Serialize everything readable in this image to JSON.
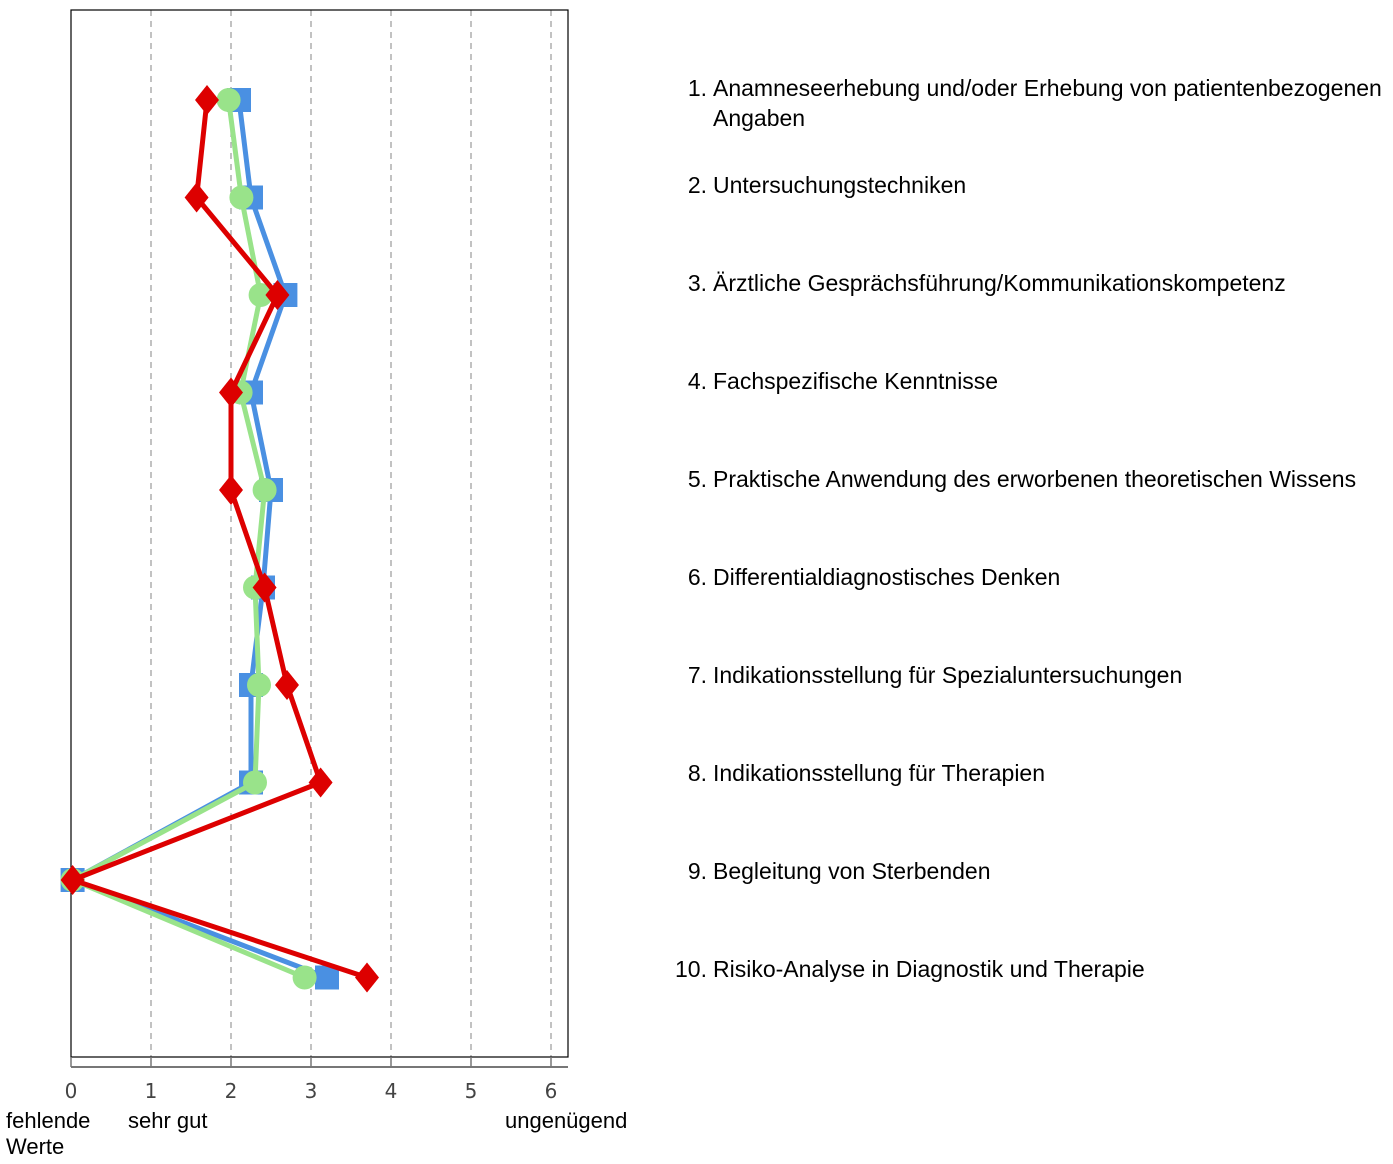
{
  "chart_data": {
    "type": "line",
    "orientation": "horizontal-values-vertical-categories",
    "xlim": [
      0,
      6.2
    ],
    "x_ticks": [
      "0",
      "1",
      "2",
      "3",
      "4",
      "5",
      "6"
    ],
    "grid": "vertical dashed",
    "categories": [
      {
        "num": "1.",
        "label": "Anamneseerhebung und/oder Erhebung von patientenbezogenen Angaben"
      },
      {
        "num": "2.",
        "label": "Untersuchungstechniken"
      },
      {
        "num": "3.",
        "label": "Ärztliche Gesprächsführung/Kommunikationskompetenz"
      },
      {
        "num": "4.",
        "label": "Fachspezifische Kenntnisse"
      },
      {
        "num": "5.",
        "label": "Praktische Anwendung des erworbenen theoretischen Wissens"
      },
      {
        "num": "6.",
        "label": "Differentialdiagnostisches Denken"
      },
      {
        "num": "7.",
        "label": "Indikationsstellung für Spezialuntersuchungen"
      },
      {
        "num": "8.",
        "label": "Indikationsstellung für Therapien"
      },
      {
        "num": "9.",
        "label": "Begleitung von Sterbenden"
      },
      {
        "num": "10.",
        "label": "Risiko-Analyse in Diagnostik und Therapie"
      }
    ],
    "series": [
      {
        "marker": "square",
        "color": "#4a90e2",
        "values": [
          2.1,
          2.25,
          2.68,
          2.25,
          2.5,
          2.4,
          2.25,
          2.25,
          0.02,
          3.2
        ]
      },
      {
        "marker": "circle",
        "color": "#99e38a",
        "values": [
          1.97,
          2.13,
          2.37,
          2.12,
          2.42,
          2.3,
          2.35,
          2.3,
          0.02,
          2.92
        ]
      },
      {
        "marker": "diamond",
        "color": "#dd0000",
        "values": [
          1.7,
          1.57,
          2.58,
          2.0,
          2.0,
          2.42,
          2.7,
          3.12,
          0.02,
          3.7
        ]
      }
    ]
  },
  "scale_labels": {
    "left": "fehlende Werte",
    "good": "sehr gut",
    "bad": "ungenügend"
  }
}
